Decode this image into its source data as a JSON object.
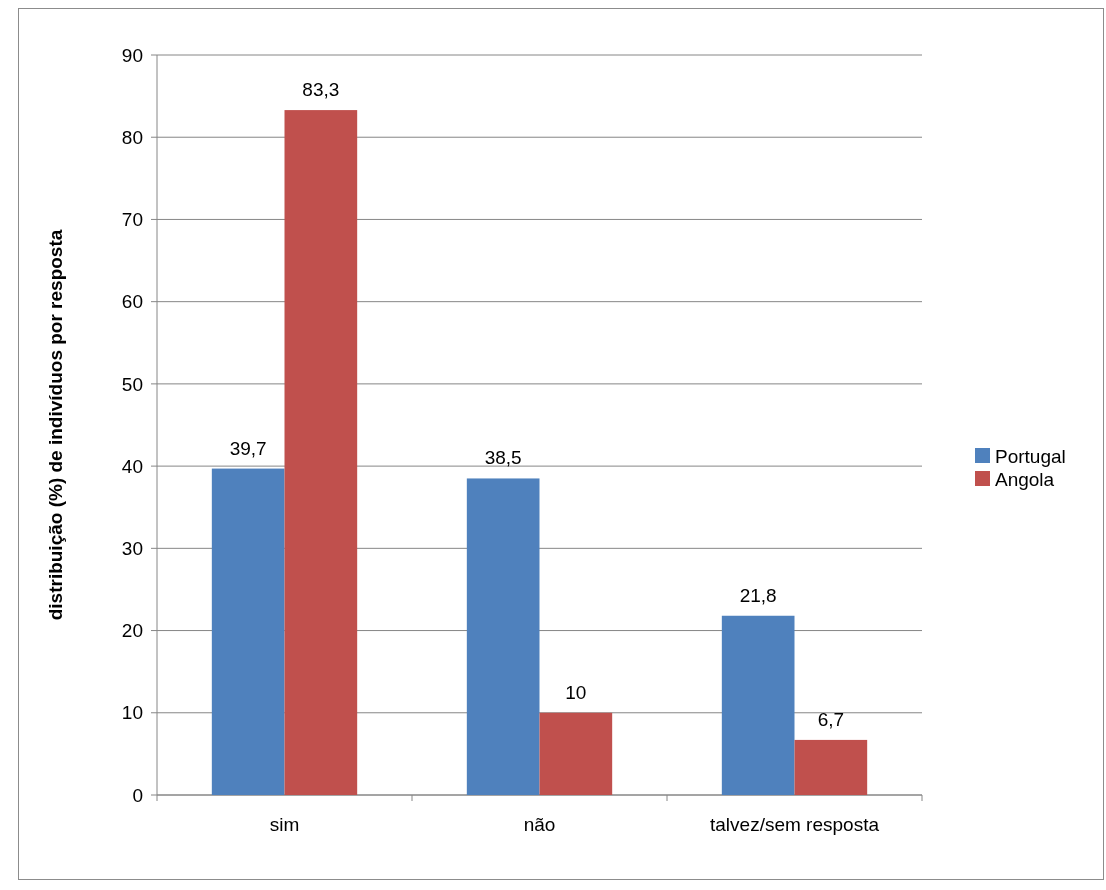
{
  "chart_data": {
    "type": "bar",
    "ylabel": "distribuição (%) de indivíduos por resposta",
    "categories": [
      "sim",
      "não",
      "talvez/sem resposta"
    ],
    "series": [
      {
        "name": "Portugal",
        "color": "#4f81bd",
        "values": [
          39.7,
          38.5,
          21.8
        ],
        "value_labels": [
          "39,7",
          "38,5",
          "21,8"
        ]
      },
      {
        "name": "Angola",
        "color": "#c0504d",
        "values": [
          83.3,
          10,
          6.7
        ],
        "value_labels": [
          "83,3",
          "10",
          "6,7"
        ]
      }
    ],
    "ylim": [
      0,
      90
    ],
    "yticks": [
      0,
      10,
      20,
      30,
      40,
      50,
      60,
      70,
      80,
      90
    ],
    "grid": "y",
    "legend": "right"
  }
}
